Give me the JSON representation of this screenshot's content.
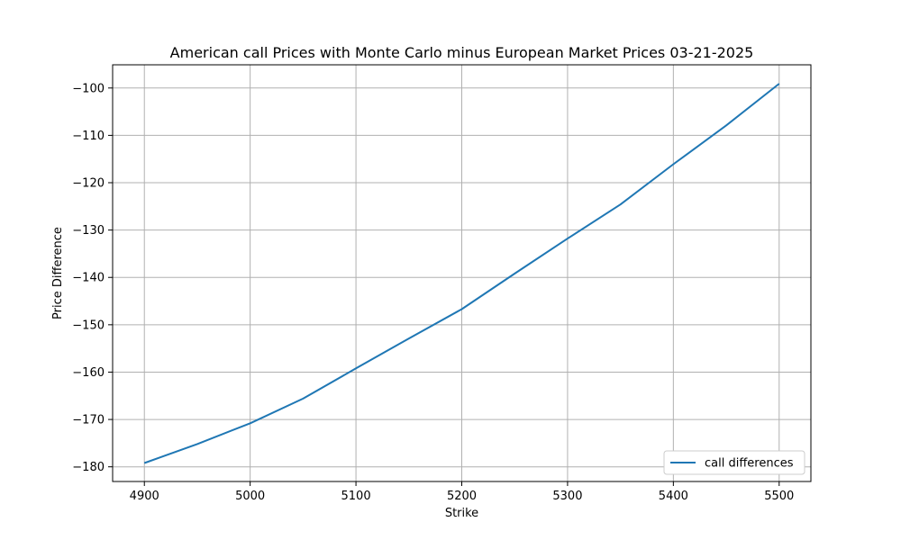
{
  "chart_data": {
    "type": "line",
    "title": "American call Prices with Monte Carlo minus European Market Prices 03-21-2025",
    "xlabel": "Strike",
    "ylabel": "Price Difference",
    "xlim": [
      4870,
      5530
    ],
    "ylim": [
      -183.1,
      -95.1
    ],
    "xticks": [
      4900,
      5000,
      5100,
      5200,
      5300,
      5400,
      5500
    ],
    "yticks": [
      -180,
      -170,
      -160,
      -150,
      -140,
      -130,
      -120,
      -110,
      -100
    ],
    "grid": true,
    "legend_position": "lower-right",
    "series": [
      {
        "name": "call differences",
        "color": "#1f77b4",
        "x": [
          4900,
          4950,
          5000,
          5050,
          5100,
          5150,
          5200,
          5250,
          5300,
          5350,
          5400,
          5450,
          5500
        ],
        "y": [
          -179.2,
          -175.2,
          -170.8,
          -165.6,
          -159.2,
          -152.9,
          -146.7,
          -139.2,
          -131.8,
          -124.6,
          -116.1,
          -107.9,
          -99.1
        ]
      }
    ]
  }
}
